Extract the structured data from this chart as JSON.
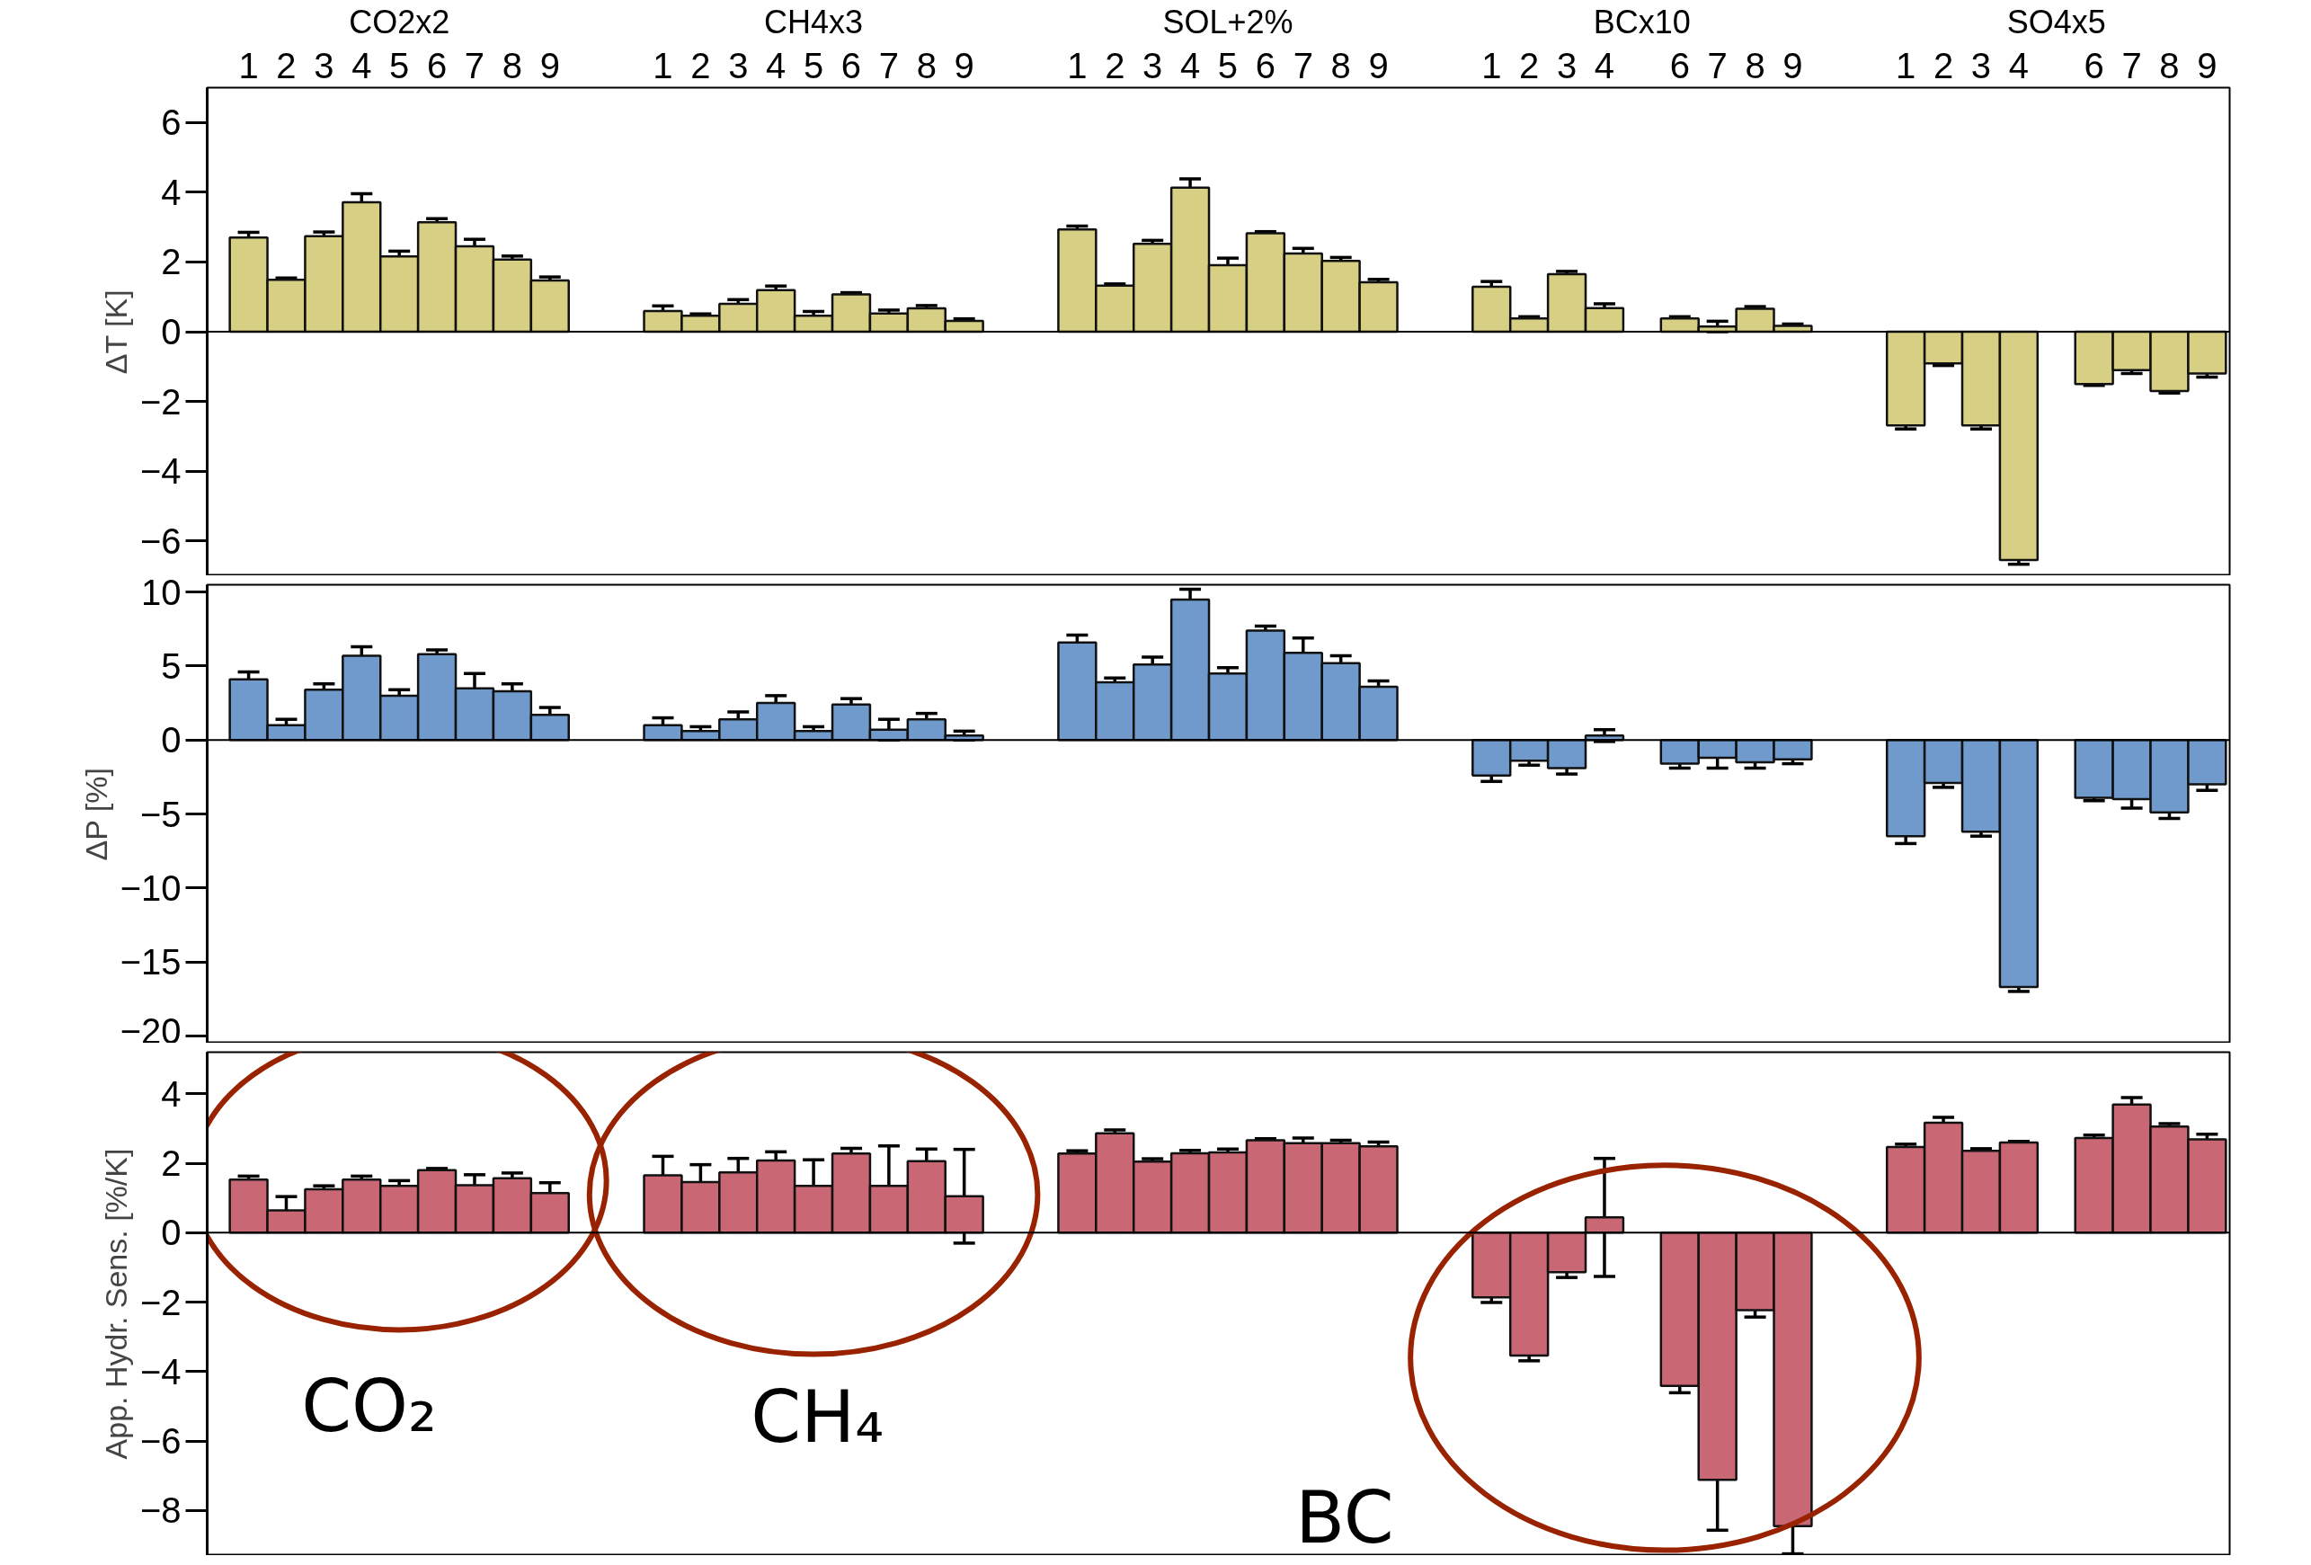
{
  "chart_data": [
    {
      "type": "bar",
      "ylabel": "ΔT [K]",
      "categories": [
        "1",
        "2",
        "3",
        "4",
        "5",
        "6",
        "7",
        "8",
        "9",
        null,
        null,
        "1",
        "2",
        "3",
        "4",
        "5",
        "6",
        "7",
        "8",
        "9",
        null,
        null,
        "1",
        "2",
        "3",
        "4",
        "5",
        "6",
        "7",
        "8",
        "9",
        null,
        null,
        "1",
        "2",
        "3",
        "4",
        null,
        "6",
        "7",
        "8",
        "9",
        null,
        null,
        "1",
        "2",
        "3",
        "4",
        null,
        "6",
        "7",
        "8",
        "9"
      ],
      "series": [
        {
          "color": "#d6cf84",
          "values": [
            2.7,
            1.49,
            2.74,
            3.71,
            2.16,
            3.14,
            2.45,
            2.07,
            1.47,
            null,
            null,
            0.59,
            0.46,
            0.8,
            1.19,
            0.46,
            1.07,
            0.52,
            0.67,
            0.31,
            null,
            null,
            2.93,
            1.32,
            2.52,
            4.13,
            1.91,
            2.82,
            2.24,
            2.03,
            1.42,
            null,
            null,
            1.29,
            0.38,
            1.65,
            0.68,
            null,
            0.38,
            0.15,
            0.66,
            0.17,
            null,
            null,
            -2.69,
            -0.91,
            -2.69,
            -6.55,
            null,
            -1.5,
            -1.1,
            -1.7,
            -1.2
          ],
          "errors": [
            0.15,
            0.05,
            0.12,
            0.25,
            0.15,
            0.1,
            0.2,
            0.1,
            0.1,
            null,
            null,
            0.15,
            0.05,
            0.12,
            0.12,
            0.12,
            0.05,
            0.1,
            0.08,
            0.06,
            null,
            null,
            0.1,
            0.05,
            0.1,
            0.25,
            0.2,
            0.05,
            0.15,
            0.1,
            0.08,
            null,
            null,
            0.15,
            0.05,
            0.08,
            0.12,
            null,
            0.05,
            0.15,
            0.06,
            0.05,
            null,
            null,
            0.1,
            0.06,
            0.1,
            0.12,
            null,
            0.04,
            0.1,
            0.06,
            0.1
          ]
        }
      ],
      "ylim": [
        -7,
        7
      ],
      "yticks": [
        -6,
        -4,
        -2,
        0,
        2,
        4,
        6
      ],
      "ref_lines": [
        {
          "axis": "y",
          "value": 0,
          "color": "#000000"
        }
      ],
      "annotations": [
        "CO2x2",
        "CH4x3",
        "SOL+2%",
        "BCx10",
        "SO4x5"
      ]
    },
    {
      "type": "bar",
      "ylabel": "ΔP [%]",
      "categories": [
        "1",
        "2",
        "3",
        "4",
        "5",
        "6",
        "7",
        "8",
        "9",
        null,
        null,
        "1",
        "2",
        "3",
        "4",
        "5",
        "6",
        "7",
        "8",
        "9",
        null,
        null,
        "1",
        "2",
        "3",
        "4",
        "5",
        "6",
        "7",
        "8",
        "9",
        null,
        null,
        "1",
        "2",
        "3",
        "4",
        null,
        "6",
        "7",
        "8",
        "9",
        null,
        null,
        "1",
        "2",
        "3",
        "4",
        null,
        "6",
        "7",
        "8",
        "9"
      ],
      "series": [
        {
          "color": "#6f9acb",
          "values": [
            4.1,
            1.0,
            3.4,
            5.7,
            3.0,
            5.8,
            3.5,
            3.3,
            1.7,
            null,
            null,
            1.0,
            0.6,
            1.4,
            2.5,
            0.6,
            2.4,
            0.7,
            1.4,
            0.3,
            null,
            null,
            6.6,
            3.9,
            5.1,
            9.5,
            4.5,
            7.4,
            5.9,
            5.2,
            3.6,
            null,
            null,
            -2.4,
            -1.4,
            -1.9,
            0.3,
            null,
            -1.6,
            -1.2,
            -1.5,
            -1.3,
            null,
            null,
            -6.5,
            -2.9,
            -6.2,
            -16.7,
            null,
            -3.9,
            -4.0,
            -4.9,
            -3.0
          ],
          "errors": [
            0.5,
            0.4,
            0.4,
            0.6,
            0.4,
            0.3,
            1.0,
            0.5,
            0.5,
            null,
            null,
            0.5,
            0.3,
            0.5,
            0.5,
            0.3,
            0.4,
            0.7,
            0.4,
            0.3,
            null,
            null,
            0.5,
            0.3,
            0.5,
            0.7,
            0.4,
            0.3,
            1.0,
            0.5,
            0.4,
            null,
            null,
            0.4,
            0.3,
            0.4,
            0.4,
            null,
            0.3,
            0.7,
            0.4,
            0.3,
            null,
            null,
            0.5,
            0.3,
            0.3,
            0.3,
            null,
            0.2,
            0.6,
            0.4,
            0.4
          ]
        }
      ],
      "ylim": [
        -20.5,
        10.5
      ],
      "yticks": [
        -20,
        -15,
        -10,
        -5,
        0,
        5,
        10
      ],
      "tick_labels": "y",
      "ref_lines": [
        {
          "axis": "y",
          "value": 0,
          "color": "#000000"
        }
      ]
    },
    {
      "type": "bar",
      "ylabel": "App. Hydr. Sens. [%/K]",
      "categories": [
        "1",
        "2",
        "3",
        "4",
        "5",
        "6",
        "7",
        "8",
        "9",
        null,
        null,
        "1",
        "2",
        "3",
        "4",
        "5",
        "6",
        "7",
        "8",
        "9",
        null,
        null,
        "1",
        "2",
        "3",
        "4",
        "5",
        "6",
        "7",
        "8",
        "9",
        null,
        null,
        "1",
        "2",
        "3",
        "4",
        null,
        "6",
        "7",
        "8",
        "9",
        null,
        null,
        "1",
        "2",
        "3",
        "4",
        null,
        "6",
        "7",
        "8",
        "9"
      ],
      "series": [
        {
          "color": "#c96874",
          "values": [
            1.53,
            0.64,
            1.25,
            1.53,
            1.35,
            1.8,
            1.37,
            1.57,
            1.14,
            null,
            null,
            1.65,
            1.46,
            1.74,
            2.08,
            1.35,
            2.28,
            1.35,
            2.06,
            1.05,
            null,
            null,
            2.28,
            2.86,
            2.05,
            2.29,
            2.31,
            2.66,
            2.58,
            2.58,
            2.49,
            null,
            null,
            -1.86,
            -3.54,
            -1.14,
            0.44,
            null,
            -4.41,
            -7.12,
            -2.23,
            -8.45,
            null,
            null,
            2.47,
            3.17,
            2.36,
            2.6,
            null,
            2.73,
            3.69,
            3.06,
            2.69
          ],
          "errors": [
            0.1,
            0.4,
            0.1,
            0.1,
            0.15,
            0.05,
            0.3,
            0.15,
            0.3,
            null,
            null,
            0.55,
            0.5,
            0.4,
            0.25,
            0.75,
            0.15,
            1.15,
            0.35,
            1.35,
            null,
            null,
            0.08,
            0.1,
            0.08,
            0.08,
            0.1,
            0.05,
            0.15,
            0.08,
            0.12,
            null,
            null,
            0.15,
            0.15,
            0.15,
            1.7,
            null,
            0.2,
            1.45,
            0.2,
            0.8,
            null,
            null,
            0.08,
            0.15,
            0.06,
            0.03,
            null,
            0.08,
            0.2,
            0.08,
            0.15
          ]
        }
      ],
      "ylim": [
        -9.3,
        5.2
      ],
      "yticks": [
        -8,
        -6,
        -4,
        -2,
        0,
        2,
        4
      ],
      "tick_labels": "y",
      "ref_lines": [
        {
          "axis": "y",
          "value": 0,
          "color": "#000000"
        }
      ],
      "annotations": [
        "CO₂",
        "CH₄",
        "BC"
      ]
    }
  ]
}
